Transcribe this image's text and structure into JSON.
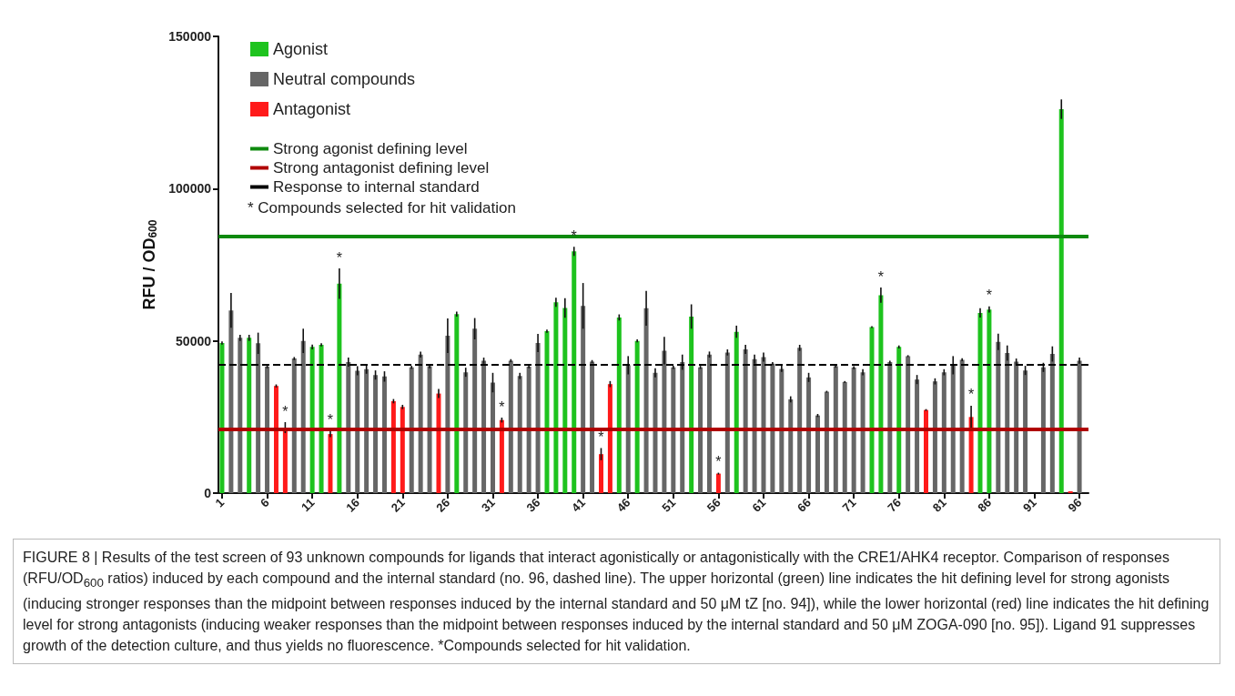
{
  "chart_data": {
    "type": "bar",
    "ylabel": "RFU / OD$_{600}$",
    "xlim": [
      0.6,
      97
    ],
    "xticks": [
      1,
      6,
      11,
      16,
      21,
      26,
      31,
      36,
      41,
      46,
      51,
      56,
      61,
      66,
      71,
      76,
      81,
      86,
      91,
      96
    ],
    "ylim": [
      0,
      150000
    ],
    "yticks": [
      0,
      50000,
      100000,
      150000
    ],
    "grid": false,
    "legend": "top left",
    "series": [
      {
        "name": "Agonist",
        "color": "#1ec31e",
        "x": [
          1,
          4,
          11,
          12,
          14,
          27,
          37,
          38,
          39,
          40,
          45,
          47,
          53,
          58,
          73,
          74,
          76,
          85,
          86,
          94
        ],
        "values": [
          49300,
          51000,
          48000,
          48700,
          68800,
          58800,
          53200,
          62700,
          60800,
          79400,
          57700,
          50000,
          58000,
          53000,
          54500,
          65000,
          48000,
          59200,
          60300,
          126100
        ],
        "errors": [
          500,
          1000,
          800,
          500,
          5000,
          800,
          500,
          1500,
          3200,
          1500,
          1000,
          500,
          4000,
          2000,
          300,
          2500,
          500,
          1500,
          1000,
          3200
        ]
      },
      {
        "name": "Neutral compounds",
        "color": "#666666",
        "x": [
          2,
          3,
          5,
          6,
          9,
          10,
          15,
          16,
          17,
          18,
          19,
          22,
          23,
          24,
          26,
          28,
          29,
          30,
          31,
          33,
          34,
          35,
          36,
          41,
          42,
          46,
          48,
          49,
          50,
          51,
          52,
          54,
          55,
          57,
          59,
          60,
          61,
          62,
          63,
          64,
          65,
          66,
          67,
          68,
          69,
          70,
          71,
          72,
          75,
          77,
          78,
          80,
          81,
          82,
          83,
          87,
          88,
          89,
          90,
          92,
          93,
          96
        ],
        "values": [
          60000,
          51000,
          49200,
          41500,
          44200,
          50000,
          43000,
          40200,
          40700,
          38800,
          38300,
          41300,
          45500,
          41700,
          51700,
          39700,
          54000,
          43500,
          36300,
          43500,
          38500,
          41500,
          49300,
          61500,
          43200,
          42000,
          60700,
          39500,
          46800,
          41300,
          43000,
          41300,
          45500,
          46200,
          47200,
          44000,
          44700,
          42500,
          40800,
          30800,
          47700,
          38000,
          25500,
          33300,
          41700,
          36500,
          41200,
          39700,
          43000,
          45000,
          37300,
          36700,
          39700,
          42000,
          43800,
          49700,
          46000,
          43200,
          40300,
          41300,
          45700,
          43500
        ],
        "errors": [
          5700,
          1000,
          3500,
          500,
          500,
          4000,
          1500,
          1500,
          1500,
          1500,
          1700,
          500,
          1000,
          700,
          5700,
          1500,
          3500,
          1000,
          3200,
          500,
          1000,
          500,
          3000,
          7500,
          500,
          3000,
          5700,
          1500,
          4500,
          500,
          2500,
          500,
          1000,
          1000,
          1500,
          1500,
          1500,
          500,
          1000,
          1000,
          1000,
          1500,
          500,
          300,
          500,
          300,
          500,
          1000,
          500,
          300,
          1500,
          1000,
          1000,
          3000,
          500,
          2700,
          2500,
          1000,
          1500,
          1500,
          2500,
          1000
        ]
      },
      {
        "name": "Antagonist",
        "color": "#ff1a1a",
        "x": [
          7,
          8,
          13,
          20,
          21,
          25,
          32,
          43,
          44,
          56,
          79,
          84,
          95
        ],
        "values": [
          35200,
          21500,
          19400,
          30200,
          28300,
          32700,
          24000,
          12800,
          35800,
          6400,
          27300,
          25000,
          600
        ],
        "errors": [
          500,
          1800,
          1000,
          700,
          700,
          1500,
          800,
          2000,
          1000,
          300,
          300,
          3700,
          null
        ]
      }
    ],
    "ref_lines": [
      {
        "axis": "y",
        "value": 84300,
        "label": "Strong agonist defining level",
        "color": "#0e8a0e",
        "line_style": "solid"
      },
      {
        "axis": "y",
        "value": 21000,
        "label": "Strong antagonist defining level",
        "color": "#b00000",
        "line_style": "solid"
      },
      {
        "axis": "y",
        "value": 42300,
        "label": "Response to internal standard",
        "color": "#000000",
        "line_style": "dashed"
      }
    ],
    "annotations": [
      "* Compounds selected for hit validation",
      "FIGURE 8 | Results of the test screen of 93 unknown compounds for ligands that interact agonistically or antagonistically with the CRE1/AHK4 receptor. Comparison of responses (RFU/OD$_{600}$ ratios) induced by each compound and the internal standard (no. 96, dashed line). The upper horizontal (green) line indicates the hit defining level for strong agonists (inducing stronger responses than the midpoint between responses induced by the internal standard and 50 μM tZ [no. 94]), while the lower horizontal (red) line indicates the hit defining level for strong antagonists (inducing weaker responses than the midpoint between responses induced by the internal standard and 50 μM ZOGA-090 [no. 95]). Ligand 91 suppresses growth of the detection culture, and thus yields no fluorescence. *Compounds selected for hit validation.",
      {
        "text": "*",
        "x": 8,
        "y": 21500
      },
      {
        "text": "*",
        "x": 13,
        "y": 19400
      },
      {
        "text": "*",
        "x": 14,
        "y": 68800
      },
      {
        "text": "*",
        "x": 32,
        "y": 24000
      },
      {
        "text": "*",
        "x": 40,
        "y": 79400
      },
      {
        "text": "*",
        "x": 43,
        "y": 12800
      },
      {
        "text": "*",
        "x": 56,
        "y": 6400
      },
      {
        "text": "*",
        "x": 74,
        "y": 65000
      },
      {
        "text": "*",
        "x": 84,
        "y": 25000
      },
      {
        "text": "*",
        "x": 86,
        "y": 60300
      }
    ]
  }
}
